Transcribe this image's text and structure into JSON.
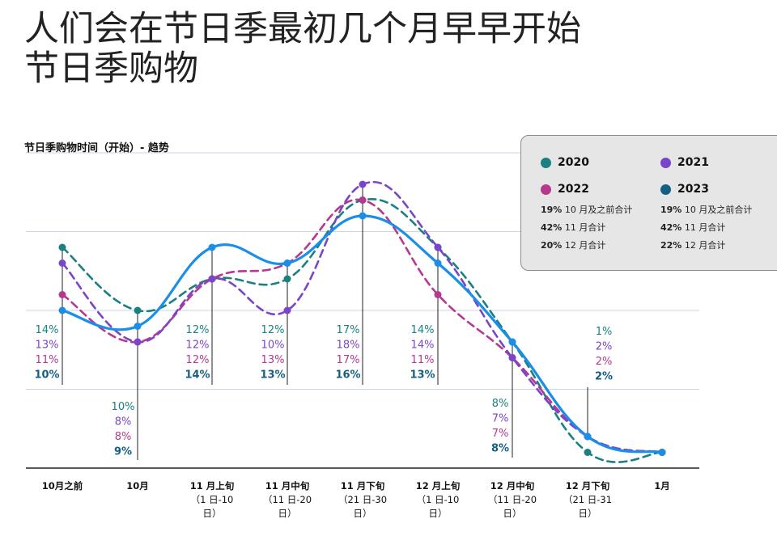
{
  "title_lines": [
    "人们会在节日季最初几个月早早开始",
    "节日季购物"
  ],
  "chart_title": "节日季购物时间（开始）- 趋势",
  "colors": {
    "2020": "#1b8080",
    "2021": "#7a45c9",
    "2022": "#b5398f",
    "2023": "#155f84",
    "trend": "#1a8ee8"
  },
  "legend": {
    "entries": [
      {
        "year": "2020",
        "color": "#1b8080"
      },
      {
        "year": "2021",
        "color": "#7a45c9"
      },
      {
        "year": "2022",
        "color": "#b5398f"
      },
      {
        "year": "2023",
        "color": "#155f84"
      }
    ],
    "stats": [
      {
        "label": "2022",
        "items": [
          {
            "pct": "19%",
            "text": "10 月及之前合计"
          },
          {
            "pct": "42%",
            "text": "11 月合计"
          },
          {
            "pct": "20%",
            "text": "12 月合计"
          }
        ]
      },
      {
        "label": "2023",
        "items": [
          {
            "pct": "19%",
            "text": "10 月及之前合计"
          },
          {
            "pct": "42%",
            "text": "11 月合计"
          },
          {
            "pct": "22%",
            "text": "12 月合计"
          }
        ]
      }
    ]
  },
  "chart_data": {
    "type": "line",
    "title": "节日季购物时间（开始）- 趋势",
    "xlabel": "",
    "ylabel": "",
    "categories": [
      [
        "10月之前"
      ],
      [
        "10月"
      ],
      [
        "11 月上旬",
        "（1 日-10",
        "日）"
      ],
      [
        "11 月中旬",
        "（11 日-20",
        "日）"
      ],
      [
        "11 月下旬",
        "（21 日-30",
        "日）"
      ],
      [
        "12 月上旬",
        "（1 日-10",
        "日）"
      ],
      [
        "12 月中旬",
        "（11 日-20",
        "日）"
      ],
      [
        "12 月下旬",
        "（21 日-31",
        "日）"
      ],
      [
        "1月"
      ]
    ],
    "ylim": [
      0,
      20
    ],
    "grid": true,
    "series": [
      {
        "name": "2020",
        "color": "#1b8080",
        "dashed": true,
        "values": [
          14,
          10,
          12,
          12,
          17,
          14,
          8,
          1,
          1
        ]
      },
      {
        "name": "2021",
        "color": "#7a45c9",
        "dashed": true,
        "values": [
          13,
          8,
          12,
          10,
          18,
          14,
          7,
          2,
          1
        ]
      },
      {
        "name": "2022",
        "color": "#b5398f",
        "dashed": true,
        "values": [
          11,
          8,
          12,
          13,
          17,
          11,
          7,
          2,
          1
        ]
      },
      {
        "name": "2023",
        "color": "#155f84",
        "dashed": false,
        "values": [
          10,
          9,
          14,
          13,
          16,
          13,
          8,
          2,
          1
        ]
      }
    ],
    "data_labels": [
      [
        "14%",
        "13%",
        "11%",
        "10%"
      ],
      [
        "10%",
        "8%",
        "8%",
        "9%"
      ],
      [
        "12%",
        "12%",
        "12%",
        "14%"
      ],
      [
        "12%",
        "10%",
        "13%",
        "13%"
      ],
      [
        "17%",
        "18%",
        "17%",
        "16%"
      ],
      [
        "14%",
        "14%",
        "11%",
        "13%"
      ],
      [
        "8%",
        "7%",
        "7%",
        "8%"
      ],
      [
        "1%",
        "2%",
        "2%",
        "2%"
      ],
      []
    ]
  }
}
